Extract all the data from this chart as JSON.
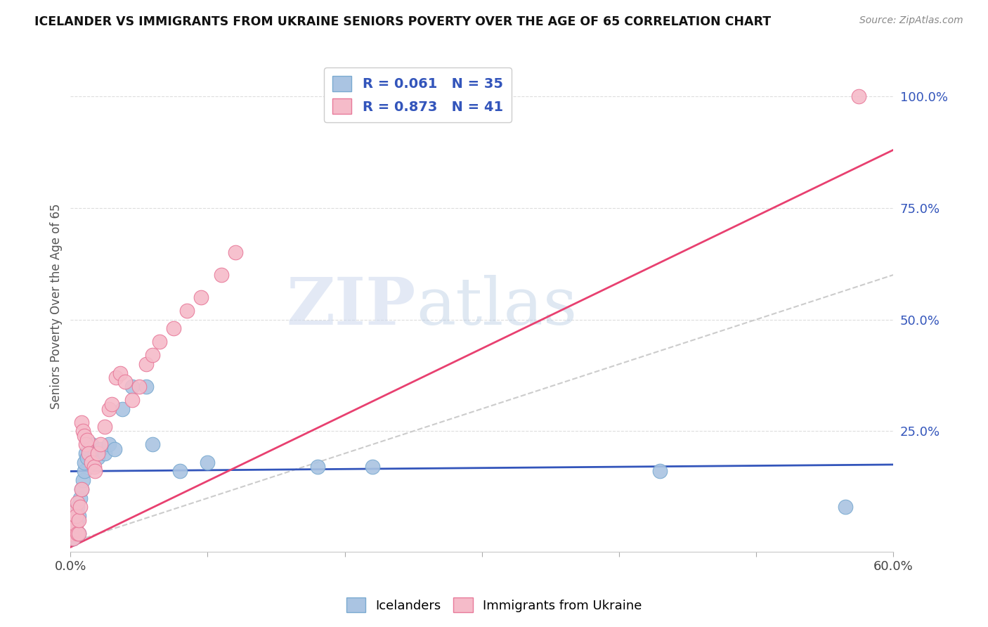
{
  "title": "ICELANDER VS IMMIGRANTS FROM UKRAINE SENIORS POVERTY OVER THE AGE OF 65 CORRELATION CHART",
  "source": "Source: ZipAtlas.com",
  "ylabel": "Seniors Poverty Over the Age of 65",
  "xlabel": "",
  "xlim": [
    0.0,
    0.6
  ],
  "ylim": [
    -0.02,
    1.08
  ],
  "xticks": [
    0.0,
    0.1,
    0.2,
    0.3,
    0.4,
    0.5,
    0.6
  ],
  "xticklabels": [
    "0.0%",
    "",
    "",
    "",
    "",
    "",
    "60.0%"
  ],
  "yticks_right": [
    0.0,
    0.25,
    0.5,
    0.75,
    1.0
  ],
  "yticklabels_right": [
    "",
    "25.0%",
    "50.0%",
    "75.0%",
    "100.0%"
  ],
  "icelanders_color": "#aac4e2",
  "icelanders_edge": "#7aaad0",
  "ukraine_color": "#f5bbc9",
  "ukraine_edge": "#e87a9a",
  "trend_iceland_color": "#3355bb",
  "trend_ukraine_color": "#e84070",
  "diagonal_color": "#cccccc",
  "R_iceland": 0.061,
  "N_iceland": 35,
  "R_ukraine": 0.873,
  "N_ukraine": 41,
  "legend_label_iceland": "Icelanders",
  "legend_label_ukraine": "Immigrants from Ukraine",
  "watermark_zip": "ZIP",
  "watermark_atlas": "atlas",
  "iceland_x": [
    0.001,
    0.002,
    0.003,
    0.003,
    0.004,
    0.004,
    0.005,
    0.005,
    0.006,
    0.006,
    0.007,
    0.008,
    0.009,
    0.01,
    0.01,
    0.011,
    0.012,
    0.013,
    0.015,
    0.018,
    0.02,
    0.022,
    0.025,
    0.028,
    0.032,
    0.038,
    0.045,
    0.055,
    0.06,
    0.08,
    0.1,
    0.18,
    0.22,
    0.43,
    0.565
  ],
  "iceland_y": [
    0.02,
    0.01,
    0.04,
    0.06,
    0.03,
    0.07,
    0.05,
    0.08,
    0.02,
    0.06,
    0.1,
    0.12,
    0.14,
    0.16,
    0.18,
    0.2,
    0.19,
    0.21,
    0.22,
    0.2,
    0.19,
    0.21,
    0.2,
    0.22,
    0.21,
    0.3,
    0.35,
    0.35,
    0.22,
    0.16,
    0.18,
    0.17,
    0.17,
    0.16,
    0.08
  ],
  "ukraine_x": [
    0.001,
    0.002,
    0.002,
    0.003,
    0.003,
    0.004,
    0.004,
    0.005,
    0.005,
    0.006,
    0.006,
    0.007,
    0.008,
    0.008,
    0.009,
    0.01,
    0.011,
    0.012,
    0.013,
    0.015,
    0.017,
    0.018,
    0.02,
    0.022,
    0.025,
    0.028,
    0.03,
    0.033,
    0.036,
    0.04,
    0.045,
    0.05,
    0.055,
    0.06,
    0.065,
    0.075,
    0.085,
    0.095,
    0.11,
    0.12,
    0.575
  ],
  "ukraine_y": [
    0.02,
    0.01,
    0.05,
    0.03,
    0.07,
    0.04,
    0.06,
    0.02,
    0.09,
    0.02,
    0.05,
    0.08,
    0.12,
    0.27,
    0.25,
    0.24,
    0.22,
    0.23,
    0.2,
    0.18,
    0.17,
    0.16,
    0.2,
    0.22,
    0.26,
    0.3,
    0.31,
    0.37,
    0.38,
    0.36,
    0.32,
    0.35,
    0.4,
    0.42,
    0.45,
    0.48,
    0.52,
    0.55,
    0.6,
    0.65,
    1.0
  ],
  "ukraine_trend_x0": 0.0,
  "ukraine_trend_y0": -0.01,
  "ukraine_trend_x1": 0.6,
  "ukraine_trend_y1": 0.88,
  "iceland_trend_x0": 0.0,
  "iceland_trend_y0": 0.16,
  "iceland_trend_x1": 0.6,
  "iceland_trend_y1": 0.175
}
